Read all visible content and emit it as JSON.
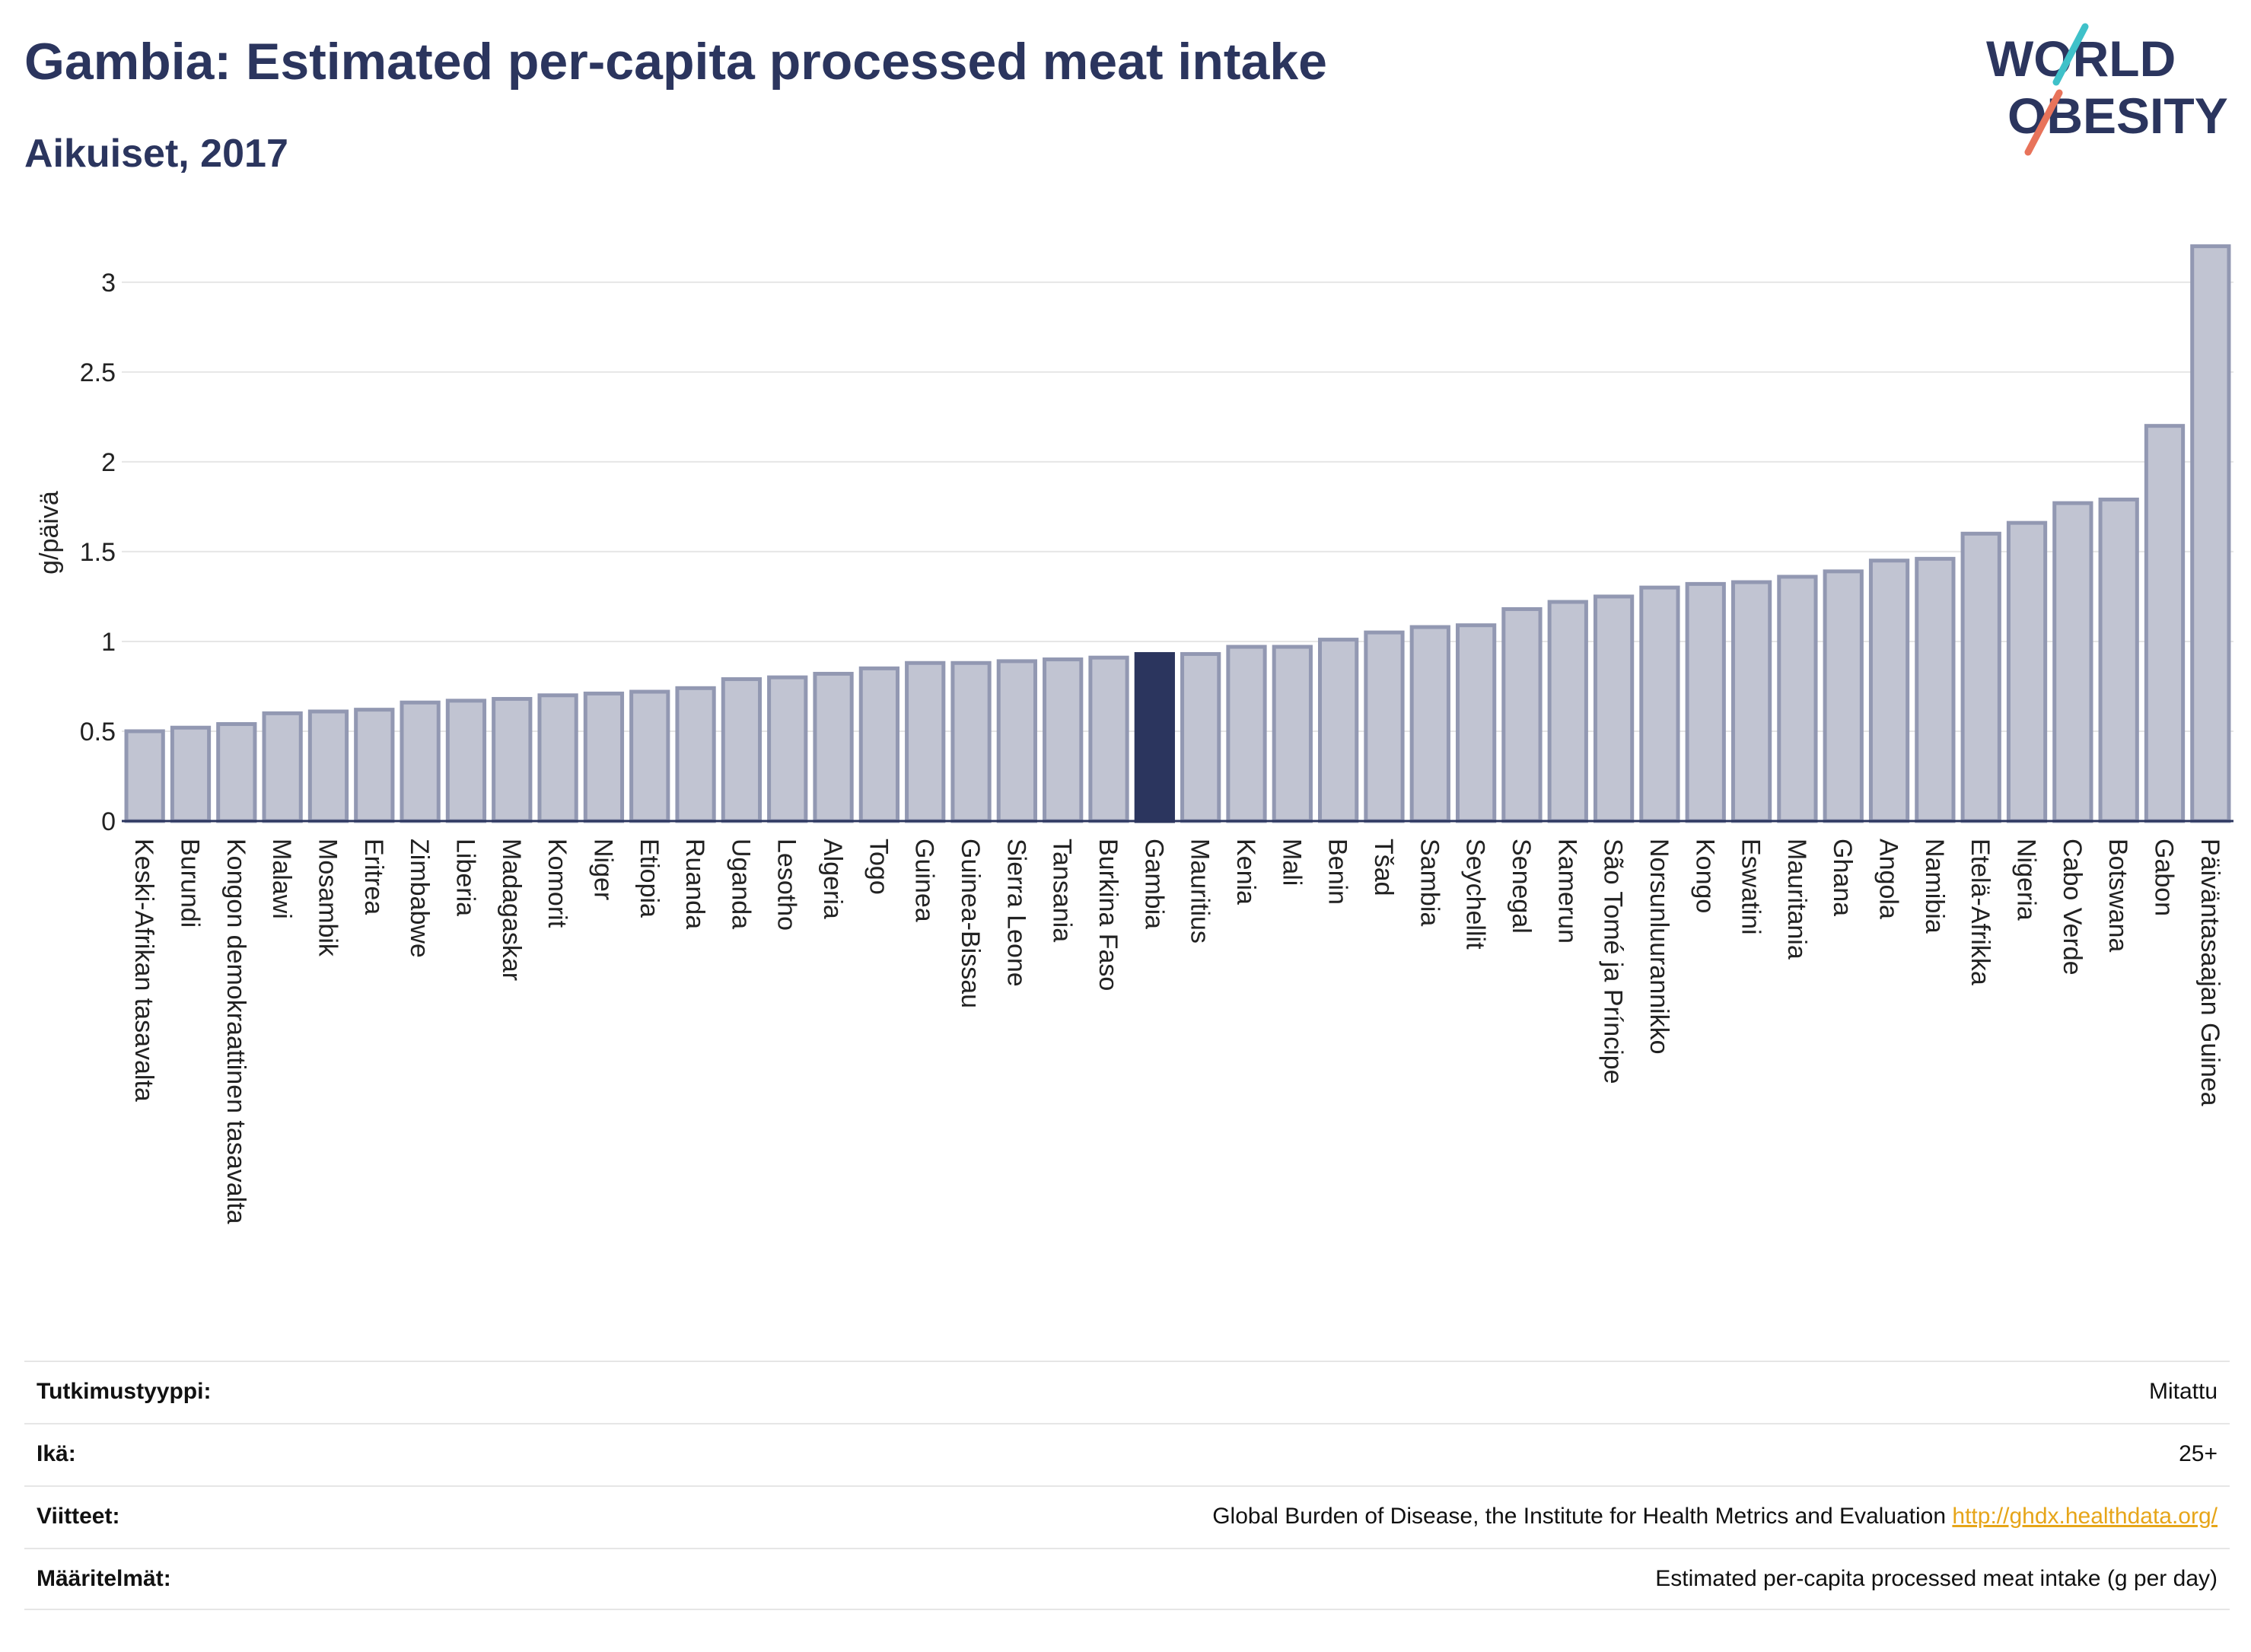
{
  "header": {
    "title": "Gambia: Estimated per-capita processed meat intake",
    "subtitle": "Aikuiset, 2017"
  },
  "logo": {
    "line1": "WORLD",
    "line2": "OBESITY",
    "text_color": "#2b355e",
    "slash_colors": [
      "#3fc1c9",
      "#e8735a"
    ]
  },
  "chart_data": {
    "type": "bar",
    "title": "",
    "xlabel": "",
    "ylabel": "g/päivä",
    "ylim": [
      0,
      3.3
    ],
    "yticks": [
      0,
      0.5,
      1,
      1.5,
      2,
      2.5,
      3
    ],
    "ytick_labels": [
      "0",
      "0.5",
      "1",
      "1.5",
      "2",
      "2.5",
      "3"
    ],
    "grid": true,
    "highlight": "Gambia",
    "colors": {
      "bar": "#c1c4d2",
      "bar_border": "#9298b2",
      "highlight": "#2b355e"
    },
    "categories": [
      "Keski-Afrikan tasavalta",
      "Burundi",
      "Kongon demokraattinen tasavalta",
      "Malawi",
      "Mosambik",
      "Eritrea",
      "Zimbabwe",
      "Liberia",
      "Madagaskar",
      "Komorit",
      "Niger",
      "Etiopia",
      "Ruanda",
      "Uganda",
      "Lesotho",
      "Algeria",
      "Togo",
      "Guinea",
      "Guinea-Bissau",
      "Sierra Leone",
      "Tansania",
      "Burkina Faso",
      "Gambia",
      "Mauritius",
      "Kenia",
      "Mali",
      "Benin",
      "Tšad",
      "Sambia",
      "Seychellit",
      "Senegal",
      "Kamerun",
      "São Tomé ja Príncipe",
      "Norsunluurannikko",
      "Kongo",
      "Eswatini",
      "Mauritania",
      "Ghana",
      "Angola",
      "Namibia",
      "Etelä-Afrikka",
      "Nigeria",
      "Cabo Verde",
      "Botswana",
      "Gabon",
      "Päiväntasaajan Guinea"
    ],
    "values": [
      0.5,
      0.52,
      0.54,
      0.6,
      0.61,
      0.62,
      0.66,
      0.67,
      0.68,
      0.7,
      0.71,
      0.72,
      0.74,
      0.79,
      0.8,
      0.82,
      0.85,
      0.88,
      0.88,
      0.89,
      0.9,
      0.91,
      0.93,
      0.93,
      0.97,
      0.97,
      1.01,
      1.05,
      1.08,
      1.09,
      1.18,
      1.22,
      1.25,
      1.3,
      1.32,
      1.33,
      1.36,
      1.39,
      1.45,
      1.46,
      1.6,
      1.66,
      1.77,
      1.79,
      2.2,
      3.2
    ]
  },
  "meta": {
    "rows": [
      {
        "label": "Tutkimustyyppi:",
        "value": "Mitattu"
      },
      {
        "label": "Ikä:",
        "value": "25+"
      },
      {
        "label": "Viitteet:",
        "value": "Global Burden of Disease, the Institute for Health Metrics and Evaluation",
        "link": "http://ghdx.healthdata.org/"
      },
      {
        "label": "Määritelmät:",
        "value": "Estimated per-capita processed meat intake (g per day)"
      }
    ]
  }
}
